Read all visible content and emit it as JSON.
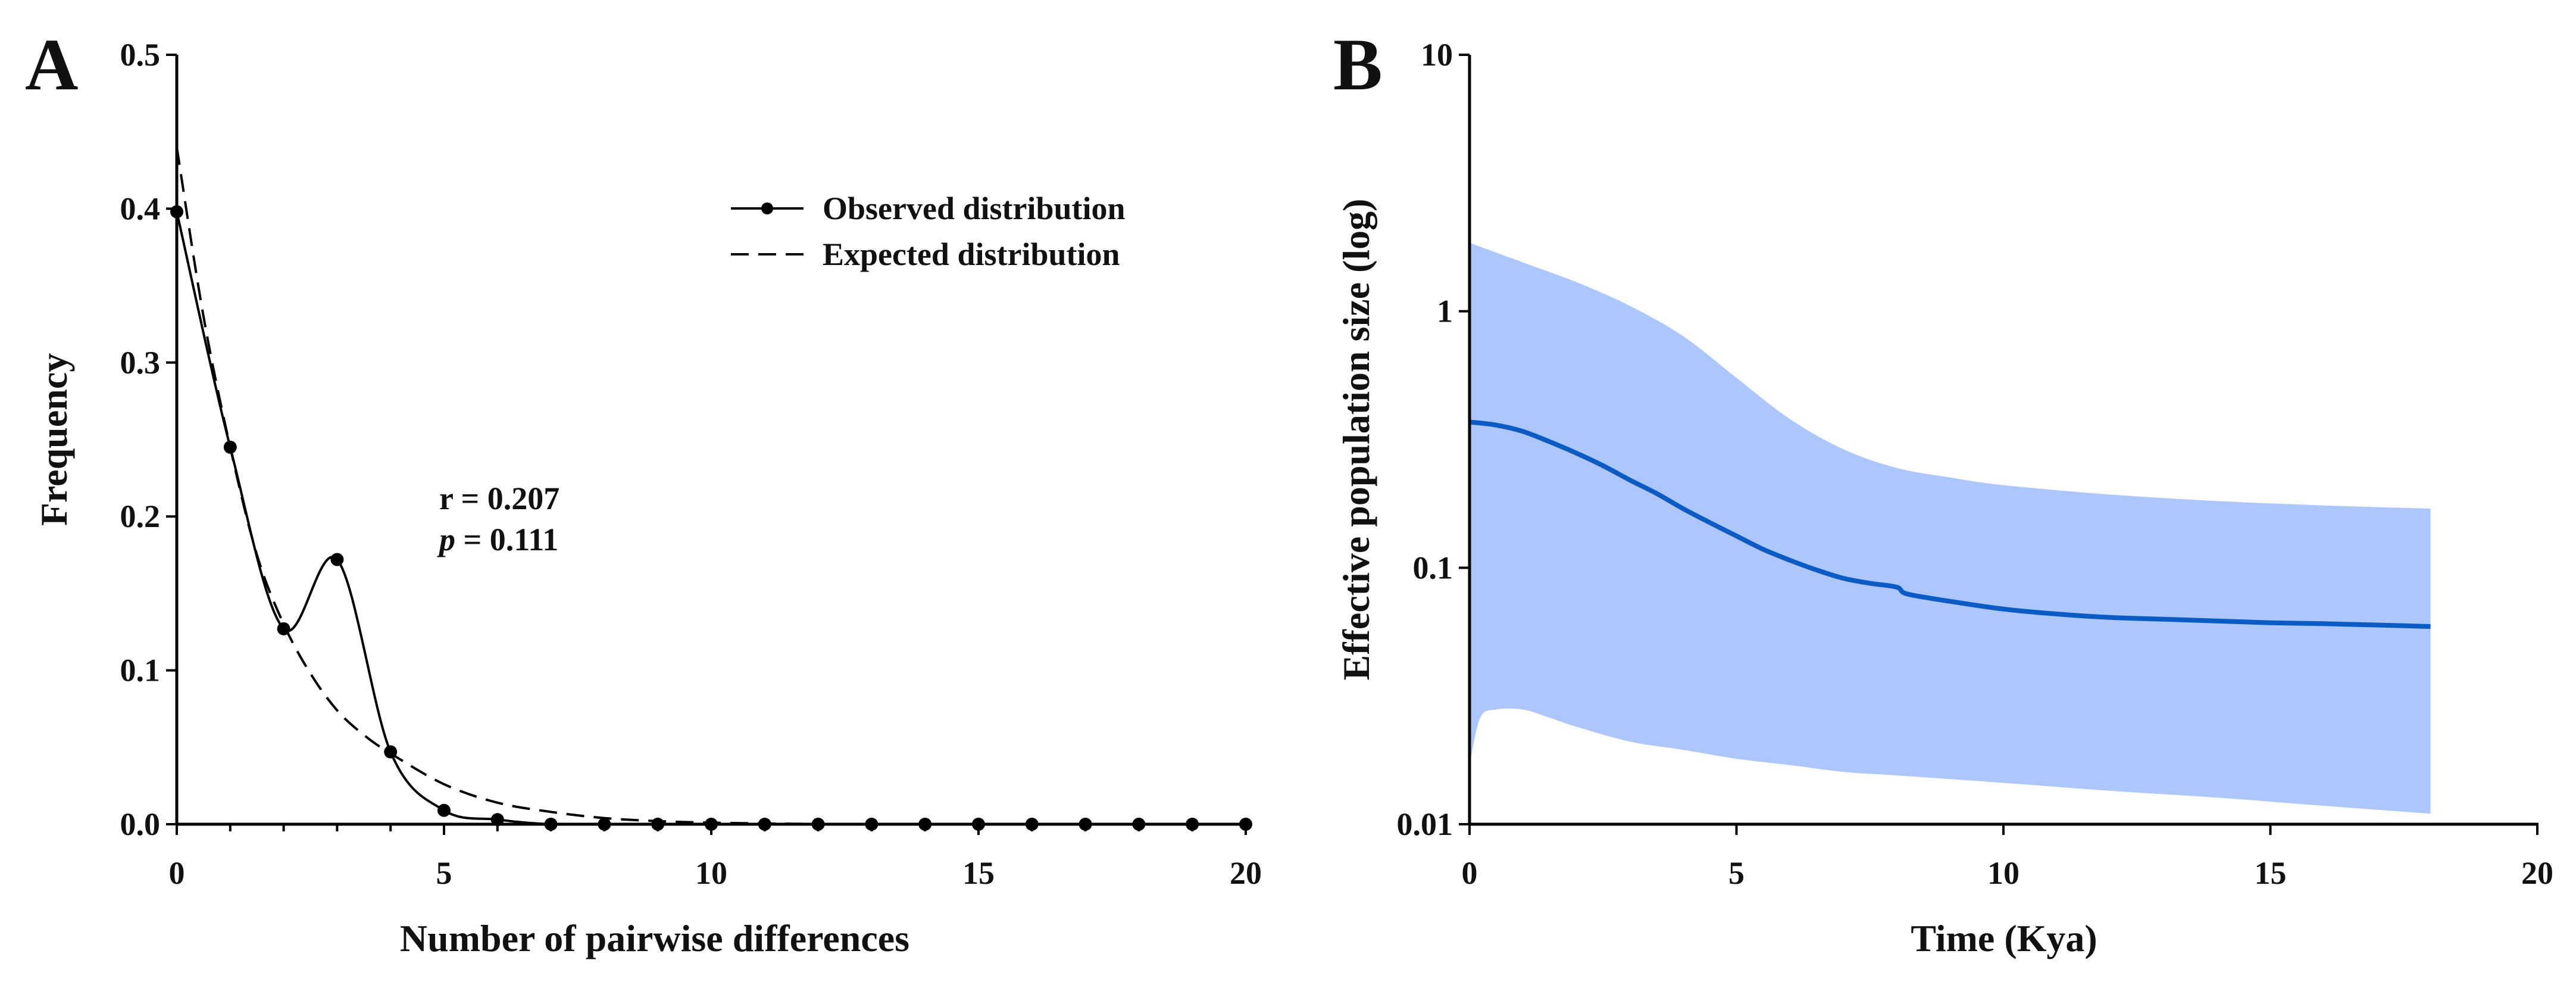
{
  "chart_data": [
    {
      "panel_label": "A",
      "type": "line",
      "xlabel": "Number of pairwise differences",
      "ylabel": "Frequency",
      "xlim": [
        0,
        20
      ],
      "ylim": [
        0,
        0.5
      ],
      "xticks": [
        "0",
        "5",
        "10",
        "15",
        "20"
      ],
      "yticks": [
        "0.0",
        "0.1",
        "0.2",
        "0.3",
        "0.4",
        "0.5"
      ],
      "series": [
        {
          "name": "Observed distribution",
          "style": "solid-with-markers",
          "x": [
            0,
            1,
            2,
            3,
            4,
            5,
            6,
            7,
            8,
            9,
            10,
            11,
            12,
            13,
            14,
            15,
            16,
            17,
            18,
            19,
            20
          ],
          "values": [
            0.398,
            0.245,
            0.127,
            0.172,
            0.047,
            0.009,
            0.003,
            0.0,
            0.0,
            0.0,
            0.0,
            0.0,
            0.0,
            0.0,
            0.0,
            0.0,
            0.0,
            0.0,
            0.0,
            0.0,
            0.0
          ]
        },
        {
          "name": "Expected distribution",
          "style": "dashed",
          "x": [
            0,
            0.5,
            1,
            1.5,
            2,
            2.5,
            3,
            3.5,
            4,
            5,
            6,
            7,
            8,
            9,
            10,
            11,
            12,
            14,
            16,
            18,
            20
          ],
          "values": [
            0.44,
            0.33,
            0.245,
            0.175,
            0.13,
            0.098,
            0.074,
            0.058,
            0.046,
            0.026,
            0.014,
            0.008,
            0.004,
            0.002,
            0.001,
            0.0005,
            0.0002,
            0.0,
            0.0,
            0.0,
            0.0
          ]
        }
      ],
      "legend": "top-right",
      "annotations": {
        "r_text": "r = 0.207",
        "p_symbol": "p",
        "p_value": " = 0.111"
      }
    },
    {
      "panel_label": "B",
      "type": "area",
      "xlabel": "Time (Kya)",
      "ylabel": "Effective population size (log)",
      "xlim": [
        0,
        20
      ],
      "ylim": [
        0.01,
        10
      ],
      "yscale": "log",
      "xticks": [
        "0",
        "5",
        "10",
        "15",
        "20"
      ],
      "yticks": [
        "0.01",
        "0.1",
        "1",
        "10"
      ],
      "series": [
        {
          "name": "Median",
          "x": [
            0,
            0.5,
            1,
            1.5,
            2,
            2.5,
            3,
            3.5,
            4,
            4.5,
            5,
            5.5,
            6,
            6.5,
            7,
            7.5,
            8,
            8.2,
            9,
            10,
            11,
            12,
            13,
            14,
            15,
            16,
            17,
            18
          ],
          "values": [
            0.37,
            0.36,
            0.34,
            0.31,
            0.28,
            0.25,
            0.22,
            0.195,
            0.17,
            0.15,
            0.133,
            0.118,
            0.107,
            0.098,
            0.091,
            0.087,
            0.084,
            0.079,
            0.074,
            0.069,
            0.066,
            0.064,
            0.063,
            0.062,
            0.061,
            0.0605,
            0.0598,
            0.059
          ]
        },
        {
          "name": "95% HPD upper",
          "x": [
            0,
            1,
            2,
            3,
            4,
            5,
            6,
            7,
            8,
            9,
            10,
            12,
            14,
            16,
            18
          ],
          "values": [
            1.85,
            1.55,
            1.3,
            1.05,
            0.8,
            0.55,
            0.38,
            0.29,
            0.245,
            0.225,
            0.21,
            0.193,
            0.182,
            0.175,
            0.17
          ]
        },
        {
          "name": "95% HPD lower",
          "x": [
            0,
            0.2,
            0.5,
            1,
            1.5,
            2,
            3,
            4,
            5,
            6,
            7,
            8,
            10,
            12,
            14,
            16,
            18
          ],
          "values": [
            0.017,
            0.026,
            0.028,
            0.028,
            0.026,
            0.024,
            0.021,
            0.0195,
            0.018,
            0.017,
            0.016,
            0.0155,
            0.0145,
            0.0135,
            0.0127,
            0.0118,
            0.011
          ]
        }
      ],
      "colors": {
        "line": "#0b5bc4",
        "band": "#adc6fb"
      }
    }
  ]
}
